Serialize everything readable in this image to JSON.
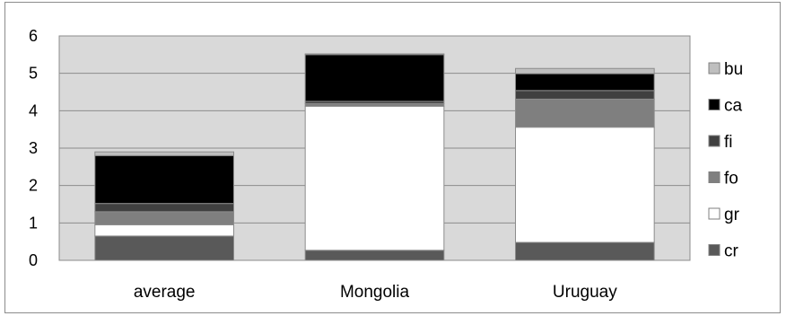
{
  "chart_data": {
    "type": "bar",
    "stacked": true,
    "categories": [
      "average",
      "Mongolia",
      "Uruguay"
    ],
    "ylim": [
      0,
      6
    ],
    "yticks": [
      "0",
      "1",
      "2",
      "3",
      "4",
      "5",
      "6"
    ],
    "grid": true,
    "legend_position": "right",
    "series": [
      {
        "name": "cr",
        "color": "#595959",
        "values": [
          0.65,
          0.27,
          0.48
        ]
      },
      {
        "name": "gr",
        "color": "#ffffff",
        "values": [
          0.3,
          3.85,
          3.08
        ]
      },
      {
        "name": "fo",
        "color": "#7f7f7f",
        "values": [
          0.35,
          0.07,
          0.75
        ]
      },
      {
        "name": "fi",
        "color": "#404040",
        "values": [
          0.22,
          0.06,
          0.23
        ]
      },
      {
        "name": "ca",
        "color": "#000000",
        "values": [
          1.28,
          1.25,
          0.45
        ]
      },
      {
        "name": "bu",
        "color": "#bfbfbf",
        "values": [
          0.1,
          0.02,
          0.14
        ]
      }
    ],
    "legend_order": [
      "bu",
      "ca",
      "fi",
      "fo",
      "gr",
      "cr"
    ]
  }
}
